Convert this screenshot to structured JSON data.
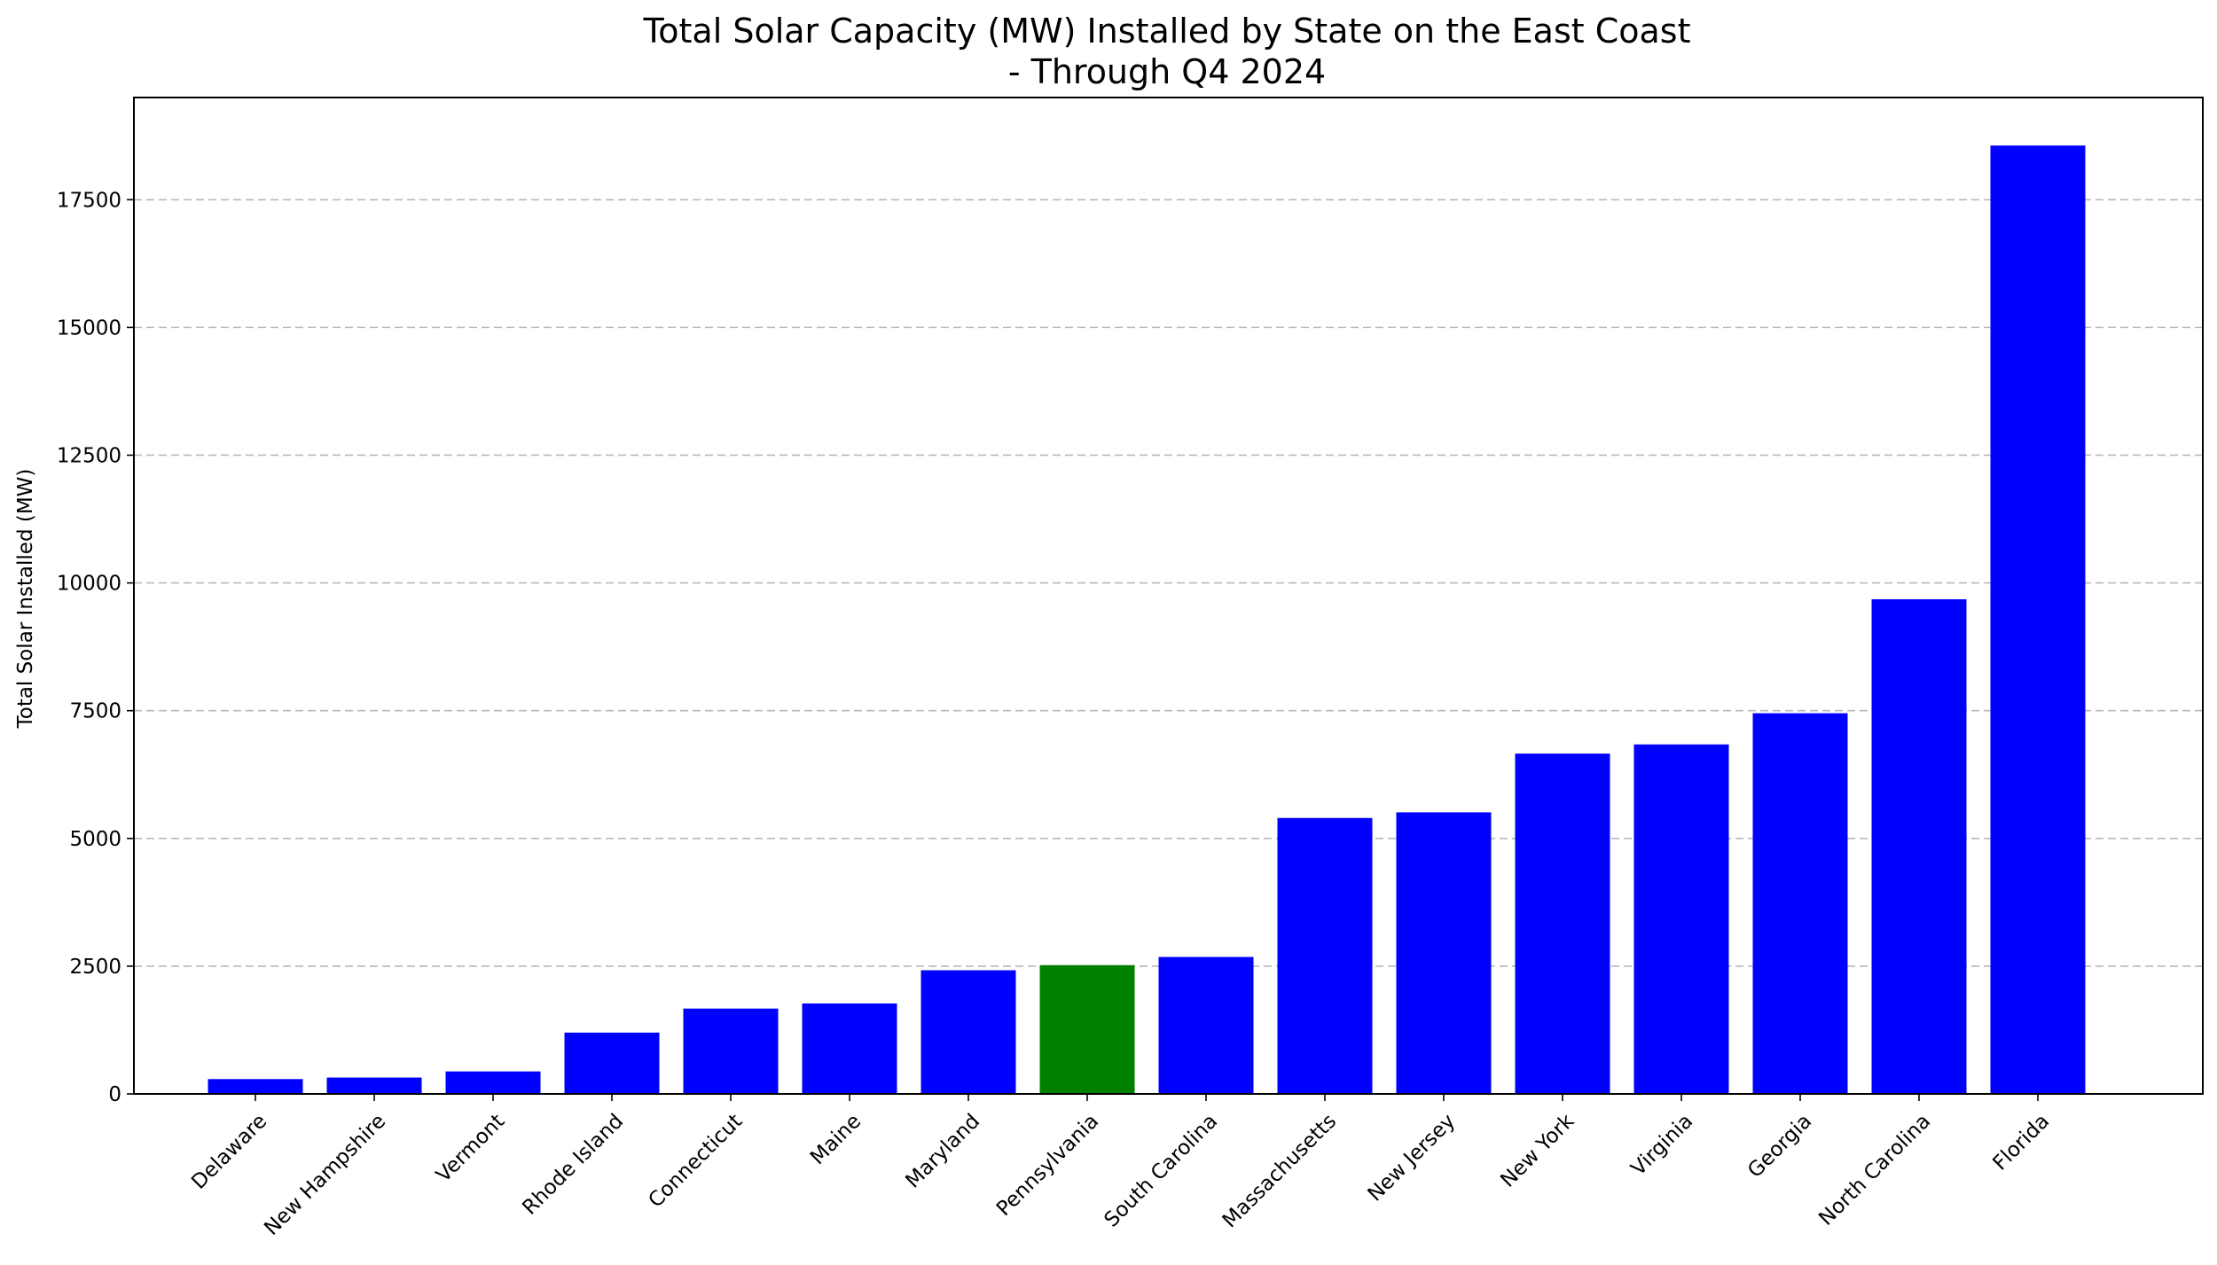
{
  "chart_data": {
    "type": "bar",
    "title": "Total Solar Capacity (MW) Installed by State on the East Coast",
    "title_line2": "- Through Q4 2024",
    "xlabel": "",
    "ylabel": "Total Solar Installed (MW)",
    "ylim": [
      0,
      19500
    ],
    "yticks": [
      0,
      2500,
      5000,
      7500,
      10000,
      12500,
      15000,
      17500
    ],
    "grid": "y-dashed",
    "categories": [
      "Delaware",
      "New Hampshire",
      "Vermont",
      "Rhode Island",
      "Connecticut",
      "Maine",
      "Maryland",
      "Pennsylvania",
      "South Carolina",
      "Massachusetts",
      "New Jersey",
      "New York",
      "Virginia",
      "Georgia",
      "North Carolina",
      "Florida"
    ],
    "values": [
      290,
      320,
      440,
      1200,
      1670,
      1770,
      2420,
      2520,
      2680,
      5400,
      5510,
      6660,
      6840,
      7450,
      9680,
      18560
    ],
    "highlight": "Pennsylvania",
    "bar_color": "#0000ff",
    "highlight_color": "#008000"
  }
}
